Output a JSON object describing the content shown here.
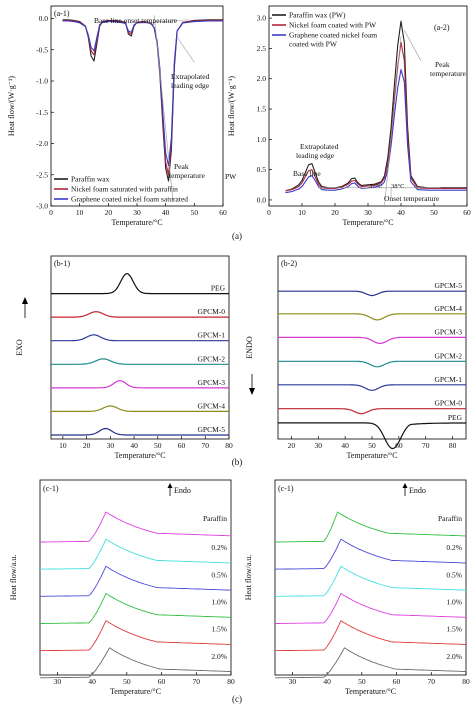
{
  "figure": {
    "group_labels": [
      "(a)",
      "(b)",
      "(c)"
    ]
  },
  "chart_data": [
    {
      "id": "a1",
      "type": "line",
      "panel_label": "(a-1)",
      "xlabel": "Temperature/°C",
      "ylabel": "Heat flow/(W·g⁻¹)",
      "xlim": [
        0,
        60
      ],
      "ylim": [
        -3.0,
        0.2
      ],
      "xticks": [
        "0",
        "10",
        "20",
        "30",
        "40",
        "50",
        "60"
      ],
      "yticks": [
        "0.0",
        "-0.5",
        "-1.0",
        "-1.5",
        "-2.0",
        "-2.5",
        "-3.0"
      ],
      "legend_position": "bottom-left",
      "grid": false,
      "series": [
        {
          "name": "Paraffin wax",
          "color": "#222222",
          "x": [
            4,
            6,
            8,
            10,
            12,
            13,
            14,
            15,
            16,
            17,
            18,
            20,
            22,
            24,
            26,
            27,
            28,
            29,
            30,
            32,
            34,
            35,
            36,
            37,
            38,
            39,
            40,
            41,
            42,
            43,
            44,
            46,
            50,
            55,
            60
          ],
          "y": [
            -0.02,
            -0.02,
            -0.03,
            -0.05,
            -0.12,
            -0.3,
            -0.6,
            -0.68,
            -0.4,
            -0.12,
            -0.05,
            -0.03,
            -0.03,
            -0.04,
            -0.06,
            -0.25,
            -0.28,
            -0.12,
            -0.06,
            -0.05,
            -0.06,
            -0.08,
            -0.15,
            -0.4,
            -0.9,
            -1.7,
            -2.4,
            -2.6,
            -2.1,
            -0.8,
            -0.2,
            -0.06,
            -0.03,
            -0.02,
            -0.02
          ]
        },
        {
          "name": "Nickel foam saturated with paraffin",
          "color": "#b0283c",
          "x": [
            4,
            6,
            8,
            10,
            12,
            13,
            14,
            15,
            16,
            17,
            18,
            20,
            22,
            24,
            26,
            27,
            28,
            29,
            30,
            32,
            34,
            35,
            36,
            37,
            38,
            39,
            40,
            41,
            42,
            43,
            44,
            46,
            50,
            55,
            60
          ],
          "y": [
            -0.03,
            -0.03,
            -0.04,
            -0.06,
            -0.12,
            -0.28,
            -0.52,
            -0.58,
            -0.34,
            -0.1,
            -0.05,
            -0.04,
            -0.04,
            -0.05,
            -0.07,
            -0.22,
            -0.25,
            -0.11,
            -0.06,
            -0.05,
            -0.06,
            -0.08,
            -0.15,
            -0.38,
            -0.85,
            -1.6,
            -2.3,
            -2.5,
            -2.0,
            -0.75,
            -0.2,
            -0.06,
            -0.04,
            -0.03,
            -0.03
          ]
        },
        {
          "name": "Graphene coated nickel foam saturated",
          "color": "#3a3ac8",
          "x": [
            4,
            6,
            8,
            10,
            12,
            13,
            14,
            15,
            16,
            17,
            18,
            20,
            22,
            24,
            26,
            27,
            28,
            29,
            30,
            32,
            34,
            35,
            36,
            37,
            38,
            39,
            40,
            41,
            42,
            43,
            44,
            46,
            50,
            55,
            60
          ],
          "y": [
            -0.04,
            -0.04,
            -0.05,
            -0.07,
            -0.13,
            -0.26,
            -0.46,
            -0.52,
            -0.3,
            -0.1,
            -0.06,
            -0.05,
            -0.05,
            -0.06,
            -0.08,
            -0.2,
            -0.22,
            -0.1,
            -0.07,
            -0.06,
            -0.07,
            -0.09,
            -0.15,
            -0.36,
            -0.8,
            -1.5,
            -2.15,
            -2.35,
            -1.9,
            -0.7,
            -0.2,
            -0.07,
            -0.05,
            -0.04,
            -0.04
          ]
        }
      ],
      "annotations": [
        "Base line onset temperature",
        "Extrapolated leading edge",
        "Peak temperature",
        "PW"
      ]
    },
    {
      "id": "a2",
      "type": "line",
      "panel_label": "(a-2)",
      "xlabel": "Temperature/°C",
      "ylabel": "Heat flow/(W·g⁻¹)",
      "xlim": [
        0,
        60
      ],
      "ylim": [
        -0.1,
        3.2
      ],
      "xticks": [
        "0",
        "10",
        "20",
        "30",
        "40",
        "50",
        "60"
      ],
      "yticks": [
        "0.0",
        "0.5",
        "1.0",
        "1.5",
        "2.0",
        "2.5",
        "3.0"
      ],
      "legend_position": "top",
      "grid": false,
      "series": [
        {
          "name": "Paraffin wax (PW)",
          "color": "#222222",
          "x": [
            5,
            7,
            9,
            10,
            11,
            12,
            13,
            14,
            15,
            16,
            18,
            20,
            22,
            24,
            25,
            26,
            27,
            28,
            30,
            32,
            34,
            35,
            36,
            37,
            38,
            39,
            40,
            41,
            42,
            43,
            45,
            48,
            52,
            56,
            60
          ],
          "y": [
            0.15,
            0.18,
            0.25,
            0.32,
            0.45,
            0.58,
            0.6,
            0.45,
            0.3,
            0.22,
            0.2,
            0.2,
            0.22,
            0.28,
            0.35,
            0.36,
            0.28,
            0.24,
            0.25,
            0.26,
            0.3,
            0.4,
            0.7,
            1.2,
            1.9,
            2.55,
            2.95,
            2.6,
            1.2,
            0.4,
            0.22,
            0.2,
            0.2,
            0.2,
            0.2
          ]
        },
        {
          "name": "Nickel foam coated with PW",
          "color": "#b0283c",
          "x": [
            5,
            7,
            9,
            10,
            11,
            12,
            13,
            14,
            15,
            16,
            18,
            20,
            22,
            24,
            25,
            26,
            27,
            28,
            30,
            32,
            34,
            35,
            36,
            37,
            38,
            39,
            40,
            41,
            42,
            43,
            45,
            48,
            52,
            56,
            60
          ],
          "y": [
            0.15,
            0.17,
            0.22,
            0.28,
            0.38,
            0.48,
            0.5,
            0.38,
            0.26,
            0.2,
            0.19,
            0.19,
            0.21,
            0.26,
            0.31,
            0.32,
            0.26,
            0.22,
            0.23,
            0.24,
            0.28,
            0.36,
            0.6,
            1.05,
            1.65,
            2.2,
            2.6,
            2.3,
            1.05,
            0.36,
            0.2,
            0.19,
            0.19,
            0.19,
            0.19
          ]
        },
        {
          "name": "Graphene coated nickel foam coated with PW",
          "color": "#3a3ac8",
          "x": [
            5,
            7,
            9,
            10,
            11,
            12,
            13,
            14,
            15,
            16,
            18,
            20,
            22,
            24,
            25,
            26,
            27,
            28,
            30,
            32,
            34,
            35,
            36,
            37,
            38,
            39,
            40,
            41,
            42,
            43,
            45,
            48,
            52,
            56,
            60
          ],
          "y": [
            0.12,
            0.14,
            0.18,
            0.22,
            0.3,
            0.38,
            0.4,
            0.32,
            0.22,
            0.17,
            0.16,
            0.16,
            0.18,
            0.22,
            0.27,
            0.28,
            0.22,
            0.19,
            0.2,
            0.21,
            0.24,
            0.3,
            0.5,
            0.9,
            1.4,
            1.85,
            2.15,
            1.95,
            0.9,
            0.3,
            0.17,
            0.16,
            0.16,
            0.16,
            0.16
          ]
        }
      ],
      "annotations": [
        "Peak temperature",
        "Extrapolated leading edge",
        "Base line",
        "37°C",
        "38°C",
        "Onset temperature"
      ]
    },
    {
      "id": "b1",
      "type": "line",
      "panel_label": "(b-1)",
      "xlabel": "Temperature/°C",
      "ylabel": "EXO",
      "xlim": [
        5,
        80
      ],
      "xticks": [
        "10",
        "20",
        "30",
        "40",
        "50",
        "60",
        "70",
        "80"
      ],
      "grid": false,
      "series": [
        {
          "name": "PEG",
          "color": "#111111",
          "center": 37,
          "width": 2.6,
          "amp": 1.0
        },
        {
          "name": "GPCM-0",
          "color": "#c0262e",
          "center": 24,
          "width": 3.0,
          "amp": 0.42
        },
        {
          "name": "GPCM-1",
          "color": "#2a3b9c",
          "center": 23,
          "width": 3.0,
          "amp": 0.45
        },
        {
          "name": "GPCM-2",
          "color": "#1f8c8c",
          "center": 27,
          "width": 3.2,
          "amp": 0.42
        },
        {
          "name": "GPCM-3",
          "color": "#d23ad2",
          "center": 34,
          "width": 2.6,
          "amp": 0.55
        },
        {
          "name": "GPCM-4",
          "color": "#8b8b1a",
          "center": 30,
          "width": 3.0,
          "amp": 0.42
        },
        {
          "name": "GPCM-5",
          "color": "#25308c",
          "center": 28,
          "width": 2.6,
          "amp": 0.5
        }
      ]
    },
    {
      "id": "b2",
      "type": "line",
      "panel_label": "(b-2)",
      "xlabel": "Temperature/°C",
      "ylabel": "ENDO",
      "xlim": [
        15,
        85
      ],
      "xticks": [
        "20",
        "30",
        "40",
        "50",
        "60",
        "70",
        "80"
      ],
      "grid": false,
      "series": [
        {
          "name": "GPCM-5",
          "color": "#25308c",
          "center": 50,
          "width": 2.2,
          "amp": 0.4
        },
        {
          "name": "GPCM-4",
          "color": "#8b8b1a",
          "center": 52,
          "width": 2.6,
          "amp": 0.55
        },
        {
          "name": "GPCM-3",
          "color": "#d23ad2",
          "center": 53,
          "width": 2.6,
          "amp": 0.55
        },
        {
          "name": "GPCM-2",
          "color": "#1f8c8c",
          "center": 52,
          "width": 2.6,
          "amp": 0.5
        },
        {
          "name": "GPCM-1",
          "color": "#2a3b9c",
          "center": 50,
          "width": 2.4,
          "amp": 0.5
        },
        {
          "name": "GPCM-0",
          "color": "#c0262e",
          "center": 46,
          "width": 2.4,
          "amp": 0.45
        },
        {
          "name": "PEG",
          "color": "#111111",
          "center": 57,
          "width": 2.6,
          "amp": 1.0
        }
      ]
    },
    {
      "id": "c1",
      "type": "line",
      "panel_label": "(c-1)",
      "xlabel": "Temperature/°C",
      "ylabel": "Heat flow/a.u.",
      "xlim": [
        25,
        80
      ],
      "xticks": [
        "30",
        "40",
        "50",
        "60",
        "70",
        "80"
      ],
      "annotation": "Endo",
      "grid": false,
      "series": [
        {
          "name": "Paraffin",
          "color": "#e040e0",
          "peak": 44,
          "onset": 39
        },
        {
          "name": "0.2%",
          "color": "#40e0e0",
          "peak": 44,
          "onset": 39
        },
        {
          "name": "0.5%",
          "color": "#4a4ad8",
          "peak": 44,
          "onset": 39
        },
        {
          "name": "1.0%",
          "color": "#30c040",
          "peak": 44,
          "onset": 39
        },
        {
          "name": "1.5%",
          "color": "#e03a3a",
          "peak": 44,
          "onset": 39
        },
        {
          "name": "2.0%",
          "color": "#6a6a6a",
          "peak": 45,
          "onset": 39
        }
      ]
    },
    {
      "id": "c2",
      "type": "line",
      "panel_label": "(c-1)",
      "xlabel": "Temperature/°C",
      "ylabel": "Heat flow/a.u.",
      "xlim": [
        25,
        80
      ],
      "xticks": [
        "30",
        "40",
        "50",
        "60",
        "70",
        "80"
      ],
      "annotation": "Endo",
      "grid": false,
      "series": [
        {
          "name": "Paraffin",
          "color": "#30c040",
          "peak": 43,
          "onset": 39
        },
        {
          "name": "0.2%",
          "color": "#4a4ad8",
          "peak": 44,
          "onset": 39
        },
        {
          "name": "0.5%",
          "color": "#40e0e0",
          "peak": 44,
          "onset": 39
        },
        {
          "name": "1.0%",
          "color": "#e040e0",
          "peak": 44,
          "onset": 39
        },
        {
          "name": "1.5%",
          "color": "#e03a3a",
          "peak": 44,
          "onset": 39
        },
        {
          "name": "2.0%",
          "color": "#6a6a6a",
          "peak": 45,
          "onset": 39
        }
      ]
    }
  ]
}
